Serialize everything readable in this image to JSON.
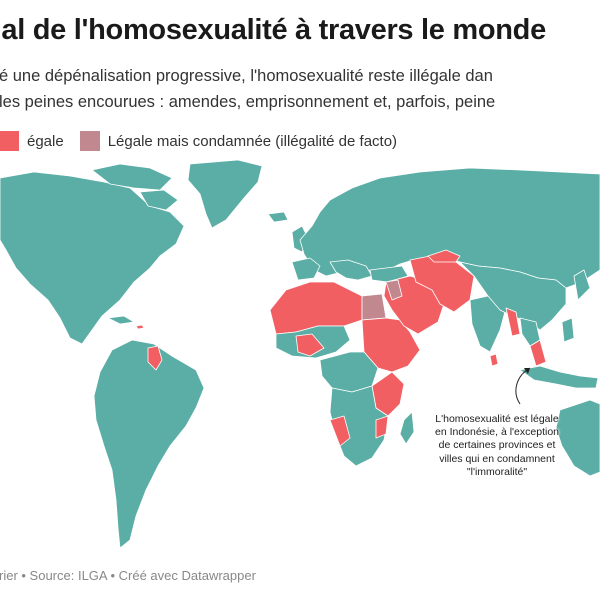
{
  "title": "gal de l'homosexualité à travers le monde",
  "description": {
    "line1": "é une dépénalisation progressive, l'homosexualité reste illégale dan",
    "line2": "les peines encourues : amendes, emprisonnement et, parfois, peine"
  },
  "legend": [
    {
      "label": "égale",
      "color": "#f25f63"
    },
    {
      "label": "Légale mais condamnée (illégalité de facto)",
      "color": "#c18890"
    }
  ],
  "colors": {
    "legal": "#5aaea6",
    "illegal": "#f25f63",
    "de_facto": "#c18890",
    "ocean": "#ffffff",
    "borders": "#ffffff"
  },
  "annotation": {
    "line1": "L'homosexualité est légale",
    "line2": "en Indonésie, à l'exception",
    "line3": "de certaines provinces et",
    "line4": "villes qui en condamnent",
    "line5": "\"l'immoralité\""
  },
  "footer": "rier • Source: ILGA • Créé avec Datawrapper"
}
